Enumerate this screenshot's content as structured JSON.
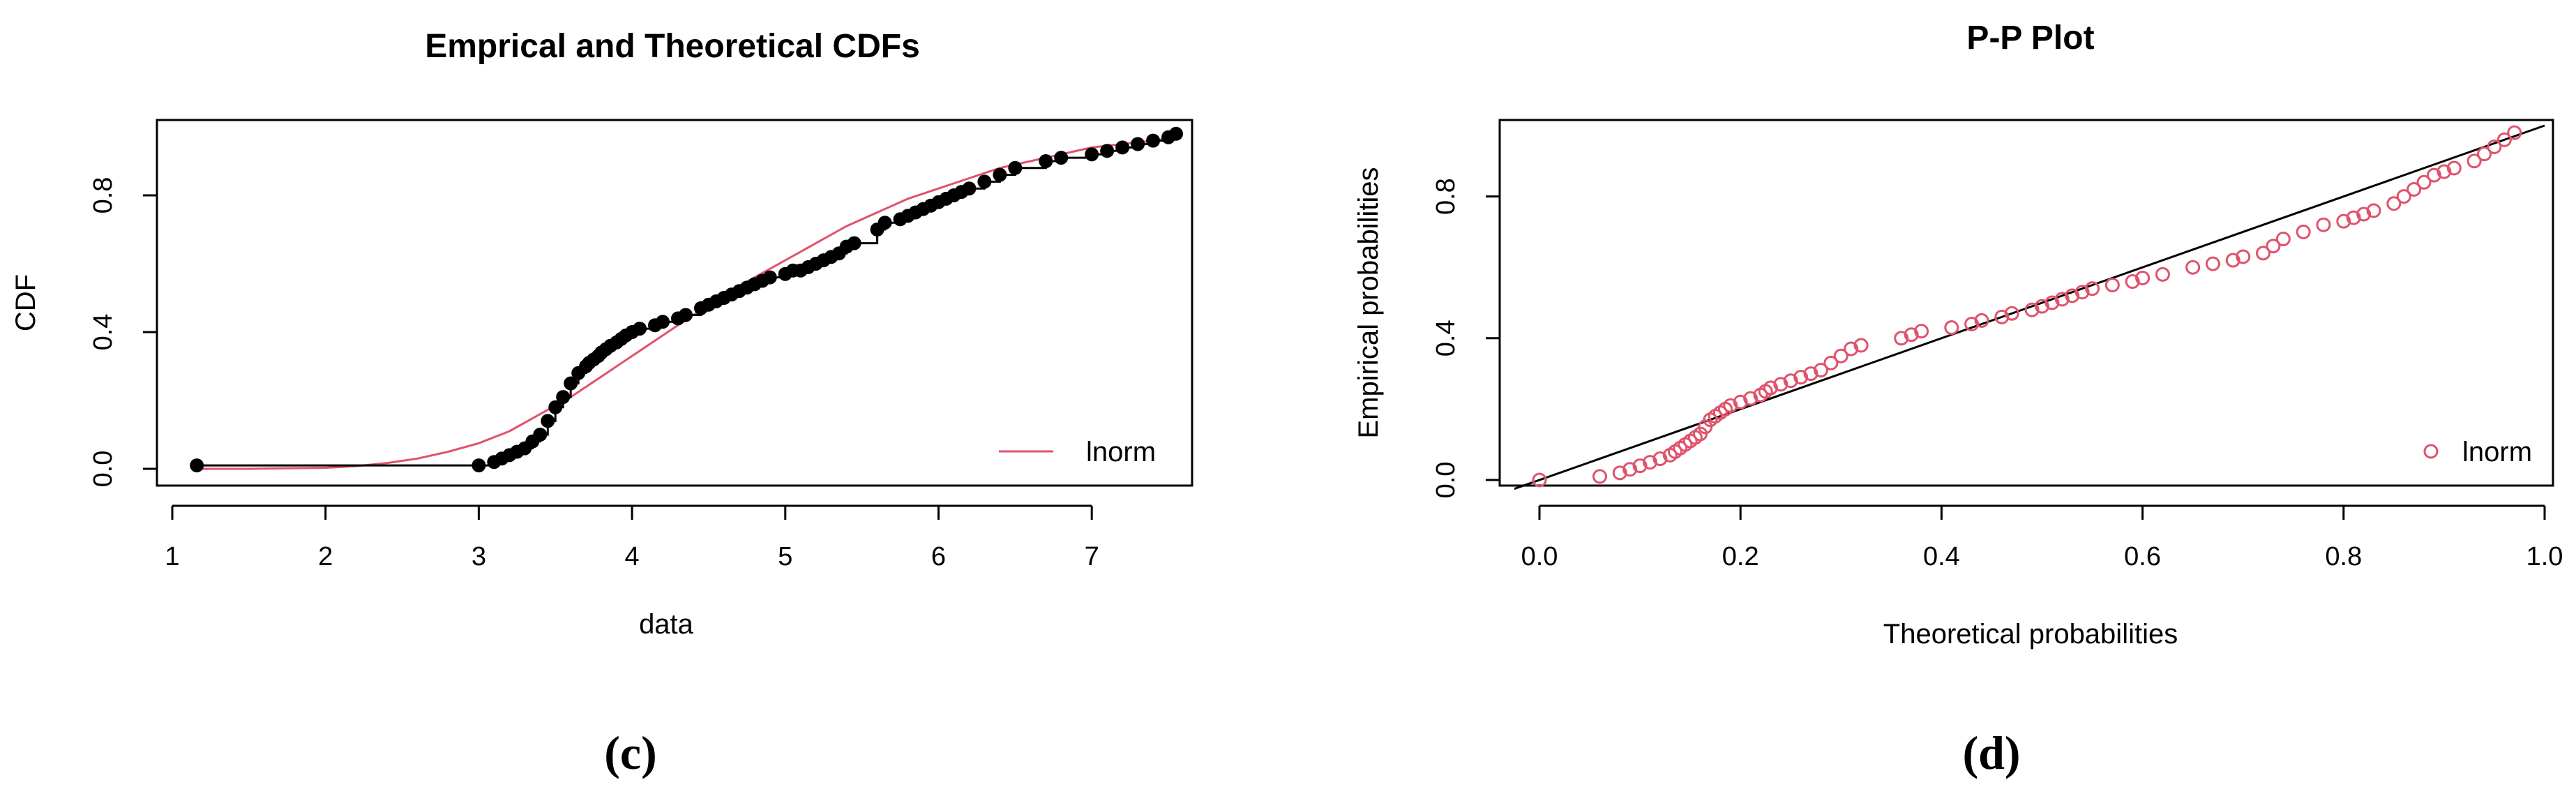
{
  "chart_data": [
    {
      "id": "c",
      "type": "line",
      "title": "Emprical and Theoretical CDFs",
      "xlabel": "data",
      "ylabel": "CDF",
      "xlim": [
        1,
        7.6
      ],
      "ylim": [
        0,
        1
      ],
      "x_ticks": [
        1,
        2,
        3,
        4,
        5,
        6,
        7
      ],
      "y_ticks": [
        0.0,
        0.4,
        0.8
      ],
      "x_tick_labels": [
        "1",
        "2",
        "3",
        "4",
        "5",
        "6",
        "7"
      ],
      "y_tick_labels": [
        "0.0",
        "0.4",
        "0.8"
      ],
      "legend": {
        "position": "bottom-right",
        "entries": [
          {
            "name": "lnorm",
            "color": "#DF536B",
            "style": "line"
          }
        ]
      },
      "caption": "(c)",
      "series": [
        {
          "name": "empirical",
          "style": "step-points",
          "color": "#000000",
          "x": [
            1.16,
            3.0,
            3.1,
            3.15,
            3.2,
            3.25,
            3.3,
            3.35,
            3.4,
            3.45,
            3.5,
            3.55,
            3.6,
            3.65,
            3.7,
            3.72,
            3.75,
            3.78,
            3.8,
            3.83,
            3.86,
            3.9,
            3.93,
            3.96,
            4.0,
            4.05,
            4.15,
            4.2,
            4.3,
            4.35,
            4.45,
            4.5,
            4.55,
            4.6,
            4.65,
            4.7,
            4.75,
            4.8,
            4.85,
            4.9,
            5.0,
            5.05,
            5.1,
            5.15,
            5.2,
            5.25,
            5.3,
            5.35,
            5.4,
            5.45,
            5.6,
            5.65,
            5.75,
            5.8,
            5.85,
            5.9,
            5.95,
            6.0,
            6.05,
            6.1,
            6.15,
            6.2,
            6.3,
            6.4,
            6.5,
            6.7,
            6.8,
            7.0,
            7.1,
            7.2,
            7.3,
            7.4,
            7.5,
            7.55
          ],
          "y": [
            0.01,
            0.01,
            0.02,
            0.03,
            0.04,
            0.05,
            0.06,
            0.08,
            0.1,
            0.14,
            0.18,
            0.21,
            0.25,
            0.28,
            0.3,
            0.31,
            0.32,
            0.33,
            0.34,
            0.35,
            0.36,
            0.37,
            0.38,
            0.39,
            0.4,
            0.41,
            0.42,
            0.43,
            0.44,
            0.45,
            0.47,
            0.48,
            0.49,
            0.5,
            0.51,
            0.52,
            0.53,
            0.54,
            0.55,
            0.56,
            0.57,
            0.58,
            0.58,
            0.59,
            0.6,
            0.61,
            0.62,
            0.63,
            0.65,
            0.66,
            0.7,
            0.72,
            0.73,
            0.74,
            0.75,
            0.76,
            0.77,
            0.78,
            0.79,
            0.8,
            0.81,
            0.82,
            0.84,
            0.86,
            0.88,
            0.9,
            0.91,
            0.92,
            0.93,
            0.94,
            0.95,
            0.96,
            0.97,
            0.98
          ]
        },
        {
          "name": "lnorm",
          "style": "line",
          "color": "#DF536B",
          "x": [
            1.16,
            1.5,
            2.0,
            2.2,
            2.4,
            2.6,
            2.8,
            3.0,
            3.2,
            3.4,
            3.6,
            3.8,
            4.0,
            4.2,
            4.4,
            4.6,
            4.8,
            5.0,
            5.2,
            5.4,
            5.6,
            5.8,
            6.0,
            6.2,
            6.4,
            6.6,
            6.8,
            7.0,
            7.2,
            7.4,
            7.55
          ],
          "y": [
            0.0,
            0.0,
            0.003,
            0.008,
            0.017,
            0.03,
            0.05,
            0.075,
            0.11,
            0.16,
            0.21,
            0.27,
            0.33,
            0.39,
            0.45,
            0.51,
            0.56,
            0.61,
            0.66,
            0.71,
            0.75,
            0.79,
            0.82,
            0.85,
            0.88,
            0.9,
            0.92,
            0.94,
            0.95,
            0.96,
            0.97
          ]
        }
      ]
    },
    {
      "id": "d",
      "type": "scatter",
      "title": "P-P Plot",
      "xlabel": "Theoretical probabilities",
      "ylabel": "Empirical probabilities",
      "xlim": [
        0,
        1
      ],
      "ylim": [
        0,
        1
      ],
      "x_ticks": [
        0.0,
        0.2,
        0.4,
        0.6,
        0.8,
        1.0
      ],
      "y_ticks": [
        0.0,
        0.4,
        0.8
      ],
      "x_tick_labels": [
        "0.0",
        "0.2",
        "0.4",
        "0.6",
        "0.8",
        "1.0"
      ],
      "y_tick_labels": [
        "0.0",
        "0.4",
        "0.8"
      ],
      "reference_line": "y = x",
      "legend": {
        "position": "bottom-right",
        "entries": [
          {
            "name": "lnorm",
            "color": "#DF536B",
            "style": "open-circle"
          }
        ]
      },
      "caption": "(d)",
      "series": [
        {
          "name": "lnorm",
          "color": "#DF536B",
          "x": [
            0.0,
            0.06,
            0.08,
            0.09,
            0.1,
            0.11,
            0.12,
            0.13,
            0.135,
            0.14,
            0.145,
            0.15,
            0.155,
            0.16,
            0.165,
            0.17,
            0.175,
            0.18,
            0.185,
            0.19,
            0.2,
            0.21,
            0.22,
            0.225,
            0.23,
            0.24,
            0.25,
            0.26,
            0.27,
            0.28,
            0.29,
            0.3,
            0.31,
            0.32,
            0.36,
            0.37,
            0.38,
            0.41,
            0.43,
            0.44,
            0.46,
            0.47,
            0.49,
            0.5,
            0.51,
            0.52,
            0.53,
            0.54,
            0.55,
            0.57,
            0.59,
            0.6,
            0.62,
            0.65,
            0.67,
            0.69,
            0.7,
            0.72,
            0.73,
            0.74,
            0.76,
            0.78,
            0.8,
            0.81,
            0.82,
            0.83,
            0.85,
            0.86,
            0.87,
            0.88,
            0.89,
            0.9,
            0.91,
            0.93,
            0.94,
            0.95,
            0.96,
            0.97
          ],
          "y": [
            0.0,
            0.01,
            0.02,
            0.03,
            0.04,
            0.05,
            0.06,
            0.07,
            0.08,
            0.09,
            0.1,
            0.11,
            0.12,
            0.13,
            0.15,
            0.17,
            0.18,
            0.19,
            0.2,
            0.21,
            0.22,
            0.23,
            0.24,
            0.25,
            0.26,
            0.27,
            0.28,
            0.29,
            0.3,
            0.31,
            0.33,
            0.35,
            0.37,
            0.38,
            0.4,
            0.41,
            0.42,
            0.43,
            0.44,
            0.45,
            0.46,
            0.47,
            0.48,
            0.49,
            0.5,
            0.51,
            0.52,
            0.53,
            0.54,
            0.55,
            0.56,
            0.57,
            0.58,
            0.6,
            0.61,
            0.62,
            0.63,
            0.64,
            0.66,
            0.68,
            0.7,
            0.72,
            0.73,
            0.74,
            0.75,
            0.76,
            0.78,
            0.8,
            0.82,
            0.84,
            0.86,
            0.87,
            0.88,
            0.9,
            0.92,
            0.94,
            0.96,
            0.98
          ]
        }
      ]
    }
  ]
}
